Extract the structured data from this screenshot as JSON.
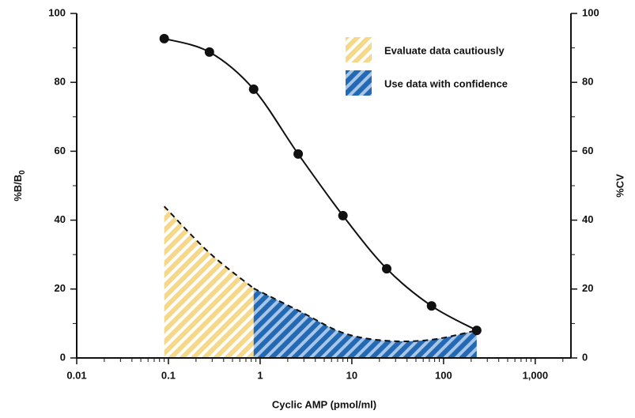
{
  "chart_data": {
    "type": "line",
    "x_label": "Cyclic AMP (pmol/ml)",
    "y_label": {
      "text": "%B/B",
      "subscript": "0"
    },
    "y2_label": "%CV",
    "x_log": true,
    "xlim": [
      0.01,
      2450
    ],
    "xticks": [
      0.01,
      0.1,
      1,
      10,
      100,
      {
        "value": 1000,
        "label": "1,000"
      }
    ],
    "xminorticks": [
      0.02,
      0.03,
      0.04,
      0.05,
      0.06,
      0.07,
      0.08,
      0.09,
      0.2,
      0.3,
      0.4,
      0.5,
      0.6,
      0.7,
      0.8,
      0.9,
      2,
      3,
      4,
      5,
      6,
      7,
      8,
      9,
      20,
      30,
      40,
      50,
      60,
      70,
      80,
      90,
      200,
      300,
      400,
      500,
      600,
      700,
      800,
      900,
      2000
    ],
    "ylim": [
      0,
      100
    ],
    "yticks": [
      0,
      20,
      40,
      60,
      80,
      100
    ],
    "yminorticks": [
      10,
      30,
      50,
      70,
      90
    ],
    "y2lim": [
      0,
      100
    ],
    "y2ticks": [
      0,
      20,
      40,
      60,
      80,
      100
    ],
    "y2minorticks": [
      10,
      30,
      50,
      70,
      90
    ],
    "legend": "top-right",
    "series": [
      {
        "color": "#111111",
        "x": [
          0.09,
          0.28,
          0.85,
          2.6,
          8.0,
          24,
          74,
          230
        ],
        "values": [
          92.7,
          88.8,
          78,
          59.2,
          41.3,
          25.9,
          15.1,
          8.0
        ]
      },
      {
        "name": "Evaluate data cautiously",
        "color": "#f6d88a",
        "axis": "y2",
        "x": [
          0.09,
          0.28,
          0.85
        ],
        "values": [
          44,
          30.5,
          20.2
        ]
      },
      {
        "name": "Use data with confidence",
        "color": "#2469b3",
        "axis": "y2",
        "x": [
          0.85,
          2.6,
          8.0,
          24,
          74,
          230
        ],
        "values": [
          20.2,
          13.8,
          7.3,
          5,
          5.3,
          8
        ]
      }
    ]
  }
}
